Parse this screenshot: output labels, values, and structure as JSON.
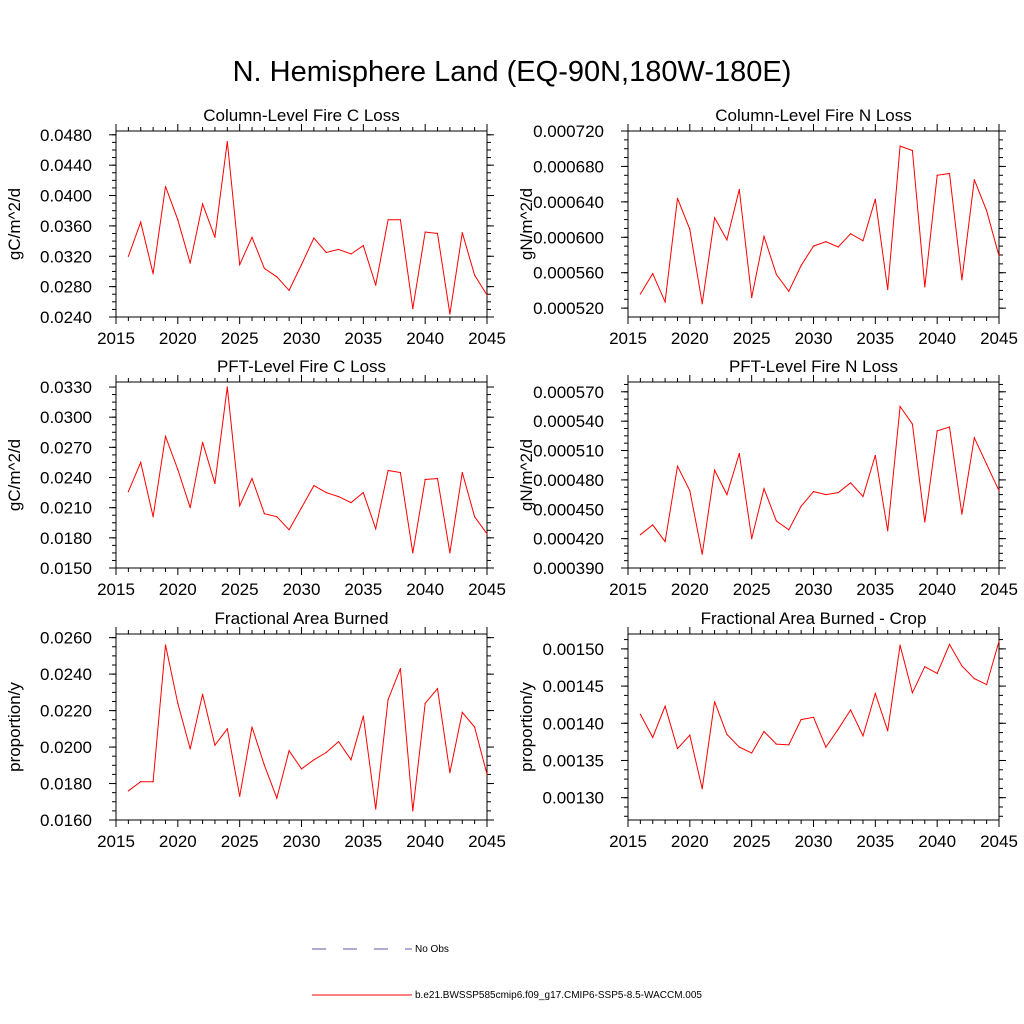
{
  "title": "N. Hemisphere Land (EQ-90N,180W-180E)",
  "colors": {
    "series": "#ff0000",
    "obs": "#5a5aa0",
    "axis": "#000000"
  },
  "legend": {
    "obs_label": "No Obs",
    "series_label": "b.e21.BWSSP585cmip6.f09_g17.CMIP6-SSP5-8.5-WACCM.005"
  },
  "chart_data": [
    {
      "type": "line",
      "title": "Column-Level Fire C Loss",
      "ylabel": "gC/m^2/d",
      "xlabel": "",
      "xlim": [
        2015,
        2045
      ],
      "ylim": [
        0.024,
        0.0485
      ],
      "xticks": [
        "2015",
        "2020",
        "2025",
        "2030",
        "2035",
        "2040",
        "2045"
      ],
      "yticks": [
        "0.0240",
        "0.0280",
        "0.0320",
        "0.0360",
        "0.0400",
        "0.0440",
        "0.0480"
      ],
      "x": [
        2016,
        2017,
        2018,
        2019,
        2020,
        2021,
        2022,
        2023,
        2024,
        2025,
        2026,
        2027,
        2028,
        2029,
        2030,
        2031,
        2032,
        2033,
        2034,
        2035,
        2036,
        2037,
        2038,
        2039,
        2040,
        2041,
        2042,
        2043,
        2044,
        2045
      ],
      "values": [
        0.032,
        0.0365,
        0.0297,
        0.0412,
        0.0368,
        0.0311,
        0.0389,
        0.0345,
        0.0471,
        0.0309,
        0.0345,
        0.0304,
        0.0293,
        0.0275,
        0.0309,
        0.0344,
        0.0325,
        0.0329,
        0.0323,
        0.0334,
        0.0282,
        0.0368,
        0.0368,
        0.0251,
        0.0352,
        0.035,
        0.0244,
        0.0351,
        0.0295,
        0.0269
      ]
    },
    {
      "type": "line",
      "title": "Column-Level Fire N Loss",
      "ylabel": "gN/m^2/d",
      "xlabel": "",
      "xlim": [
        2015,
        2045
      ],
      "ylim": [
        0.00051,
        0.00072
      ],
      "xticks": [
        "2015",
        "2020",
        "2025",
        "2030",
        "2035",
        "2040",
        "2045"
      ],
      "yticks": [
        "0.000520",
        "0.000560",
        "0.000600",
        "0.000640",
        "0.000680",
        "0.000720"
      ],
      "x": [
        2016,
        2017,
        2018,
        2019,
        2020,
        2021,
        2022,
        2023,
        2024,
        2025,
        2026,
        2027,
        2028,
        2029,
        2030,
        2031,
        2032,
        2033,
        2034,
        2035,
        2036,
        2037,
        2038,
        2039,
        2040,
        2041,
        2042,
        2043,
        2044,
        2045
      ],
      "values": [
        0.000536,
        0.000559,
        0.000527,
        0.000644,
        0.000609,
        0.000525,
        0.000622,
        0.000597,
        0.000654,
        0.000532,
        0.000601,
        0.000558,
        0.000539,
        0.000568,
        0.00059,
        0.000595,
        0.000589,
        0.000604,
        0.000596,
        0.000643,
        0.000541,
        0.000703,
        0.000698,
        0.000544,
        0.00067,
        0.000672,
        0.000552,
        0.000665,
        0.00063,
        0.000579
      ]
    },
    {
      "type": "line",
      "title": "PFT-Level Fire C Loss",
      "ylabel": "gC/m^2/d",
      "xlabel": "",
      "xlim": [
        2015,
        2045
      ],
      "ylim": [
        0.015,
        0.0335
      ],
      "xticks": [
        "2015",
        "2020",
        "2025",
        "2030",
        "2035",
        "2040",
        "2045"
      ],
      "yticks": [
        "0.0150",
        "0.0180",
        "0.0210",
        "0.0240",
        "0.0270",
        "0.0300",
        "0.0330"
      ],
      "x": [
        2016,
        2017,
        2018,
        2019,
        2020,
        2021,
        2022,
        2023,
        2024,
        2025,
        2026,
        2027,
        2028,
        2029,
        2030,
        2031,
        2032,
        2033,
        2034,
        2035,
        2036,
        2037,
        2038,
        2039,
        2040,
        2041,
        2042,
        2043,
        2044,
        2045
      ],
      "values": [
        0.0226,
        0.0255,
        0.0201,
        0.0281,
        0.0248,
        0.021,
        0.0275,
        0.0234,
        0.033,
        0.0212,
        0.0239,
        0.0204,
        0.0201,
        0.0188,
        0.021,
        0.0232,
        0.0225,
        0.0221,
        0.0215,
        0.0225,
        0.0189,
        0.0247,
        0.0245,
        0.0165,
        0.0238,
        0.0239,
        0.0165,
        0.0245,
        0.0201,
        0.0184
      ]
    },
    {
      "type": "line",
      "title": "PFT-Level Fire N Loss",
      "ylabel": "gN/m^2/d",
      "xlabel": "",
      "xlim": [
        2015,
        2045
      ],
      "ylim": [
        0.00039,
        0.00058
      ],
      "xticks": [
        "2015",
        "2020",
        "2025",
        "2030",
        "2035",
        "2040",
        "2045"
      ],
      "yticks": [
        "0.000390",
        "0.000420",
        "0.000450",
        "0.000480",
        "0.000510",
        "0.000540",
        "0.000570"
      ],
      "x": [
        2016,
        2017,
        2018,
        2019,
        2020,
        2021,
        2022,
        2023,
        2024,
        2025,
        2026,
        2027,
        2028,
        2029,
        2030,
        2031,
        2032,
        2033,
        2034,
        2035,
        2036,
        2037,
        2038,
        2039,
        2040,
        2041,
        2042,
        2043,
        2044,
        2045
      ],
      "values": [
        0.000424,
        0.000434,
        0.000417,
        0.000494,
        0.000469,
        0.000404,
        0.00049,
        0.000465,
        0.000507,
        0.00042,
        0.000471,
        0.000438,
        0.000429,
        0.000453,
        0.000468,
        0.000465,
        0.000467,
        0.000477,
        0.000463,
        0.000505,
        0.000428,
        0.000555,
        0.000537,
        0.000437,
        0.00053,
        0.000534,
        0.000445,
        0.000523,
        0.000496,
        0.000469
      ]
    },
    {
      "type": "line",
      "title": "Fractional Area Burned",
      "ylabel": "proportion/y",
      "xlabel": "",
      "xlim": [
        2015,
        2045
      ],
      "ylim": [
        0.016,
        0.0262
      ],
      "xticks": [
        "2015",
        "2020",
        "2025",
        "2030",
        "2035",
        "2040",
        "2045"
      ],
      "yticks": [
        "0.0160",
        "0.0180",
        "0.0200",
        "0.0220",
        "0.0240",
        "0.0260"
      ],
      "x": [
        2016,
        2017,
        2018,
        2019,
        2020,
        2021,
        2022,
        2023,
        2024,
        2025,
        2026,
        2027,
        2028,
        2029,
        2030,
        2031,
        2032,
        2033,
        2034,
        2035,
        2036,
        2037,
        2038,
        2039,
        2040,
        2041,
        2042,
        2043,
        2044,
        2045
      ],
      "values": [
        0.0176,
        0.0181,
        0.0181,
        0.0256,
        0.0224,
        0.0199,
        0.0229,
        0.0201,
        0.021,
        0.0173,
        0.0211,
        0.019,
        0.0172,
        0.0198,
        0.0188,
        0.0193,
        0.0197,
        0.0203,
        0.0193,
        0.0217,
        0.0166,
        0.0226,
        0.0243,
        0.0165,
        0.0224,
        0.0232,
        0.0186,
        0.0219,
        0.0211,
        0.0185
      ]
    },
    {
      "type": "line",
      "title": "Fractional Area Burned - Crop",
      "ylabel": "proportion/y",
      "xlabel": "",
      "xlim": [
        2015,
        2045
      ],
      "ylim": [
        0.00127,
        0.00152
      ],
      "xticks": [
        "2015",
        "2020",
        "2025",
        "2030",
        "2035",
        "2040",
        "2045"
      ],
      "yticks": [
        "0.00130",
        "0.00135",
        "0.00140",
        "0.00145",
        "0.00150"
      ],
      "x": [
        2016,
        2017,
        2018,
        2019,
        2020,
        2021,
        2022,
        2023,
        2024,
        2025,
        2026,
        2027,
        2028,
        2029,
        2030,
        2031,
        2032,
        2033,
        2034,
        2035,
        2036,
        2037,
        2038,
        2039,
        2040,
        2041,
        2042,
        2043,
        2044,
        2045
      ],
      "values": [
        0.001412,
        0.001381,
        0.001423,
        0.001366,
        0.001384,
        0.001312,
        0.001429,
        0.001385,
        0.001368,
        0.00136,
        0.001389,
        0.001372,
        0.001371,
        0.001405,
        0.001408,
        0.001368,
        0.001392,
        0.001418,
        0.001383,
        0.00144,
        0.00139,
        0.001505,
        0.001441,
        0.001476,
        0.001467,
        0.001506,
        0.001477,
        0.00146,
        0.001452,
        0.00151
      ]
    }
  ]
}
